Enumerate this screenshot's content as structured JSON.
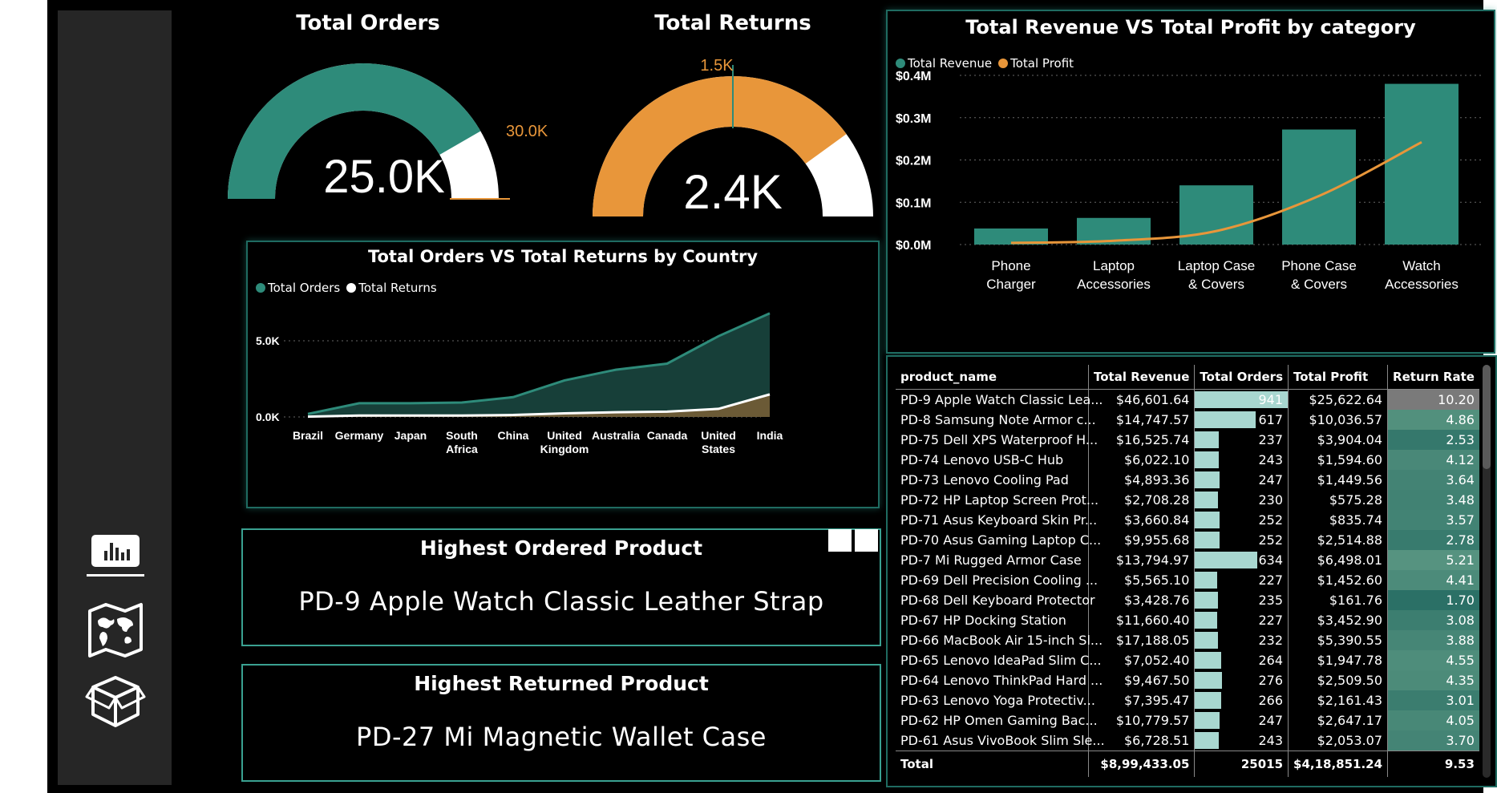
{
  "sidebar": {
    "items": [
      {
        "icon": "bar-chart-icon"
      },
      {
        "icon": "world-map-icon"
      },
      {
        "icon": "box-icon"
      }
    ]
  },
  "gauges": {
    "orders": {
      "title": "Total Orders",
      "value_label": "25.0K",
      "value": 25000,
      "target_label": "30.0K",
      "target": 30000,
      "max": 30000,
      "color": "#2e8b7a"
    },
    "returns": {
      "title": "Total Returns",
      "value_label": "2.4K",
      "value": 2400,
      "target_label": "1.5K",
      "target": 1500,
      "max": 3000,
      "color": "#e8963a"
    }
  },
  "kpis": {
    "highest_ordered": {
      "title": "Highest Ordered Product",
      "value": "PD-9  Apple Watch Classic Leather Strap"
    },
    "highest_returned": {
      "title": "Highest Returned Product",
      "value": "PD-27  Mi Magnetic Wallet Case"
    }
  },
  "colors": {
    "teal": "#2e8b7a",
    "orange": "#e8963a",
    "white": "#ffffff",
    "panel_border": "#1f6b61"
  },
  "chart_data": [
    {
      "type": "area",
      "title": "Total Orders VS Total Returns by Country",
      "categories": [
        "Brazil",
        "Germany",
        "Japan",
        "South Africa",
        "China",
        "United Kingdom",
        "Australia",
        "Canada",
        "United States",
        "India"
      ],
      "series": [
        {
          "name": "Total Orders",
          "values": [
            200,
            900,
            900,
            950,
            1300,
            2400,
            3100,
            3500,
            5300,
            6800
          ]
        },
        {
          "name": "Total Returns",
          "values": [
            20,
            90,
            90,
            95,
            130,
            240,
            310,
            350,
            530,
            1480
          ]
        }
      ],
      "yticks": [
        "0.0K",
        "5.0K"
      ],
      "ylim": [
        0,
        7000
      ],
      "grid": true,
      "legend": "top-left"
    },
    {
      "type": "bar",
      "title": "Total Revenue VS Total Profit by category",
      "categories": [
        "Phone Charger",
        "Laptop Accessories",
        "Laptop Case & Covers",
        "Phone Case & Covers",
        "Watch Accessories"
      ],
      "series": [
        {
          "name": "Total Revenue",
          "type": "bar",
          "values": [
            0.038,
            0.063,
            0.14,
            0.272,
            0.38
          ]
        },
        {
          "name": "Total Profit",
          "type": "line",
          "values": [
            0.004,
            0.009,
            0.032,
            0.115,
            0.242
          ]
        }
      ],
      "yticks": [
        "$0.0M",
        "$0.1M",
        "$0.2M",
        "$0.3M",
        "$0.4M"
      ],
      "ylim": [
        0,
        0.4
      ],
      "grid": true,
      "legend": "top-left"
    }
  ],
  "table": {
    "columns": [
      "product_name",
      "Total Revenue",
      "Total Orders",
      "Total Profit",
      "Return Rate"
    ],
    "orders_max": 941,
    "rows": [
      {
        "name": "PD-9  Apple Watch Classic Lea...",
        "revenue": "$46,601.64",
        "orders": 941,
        "profit": "$25,622.64",
        "rate": "10.20"
      },
      {
        "name": "PD-8  Samsung Note Armor c...",
        "revenue": "$14,747.57",
        "orders": 617,
        "profit": "$10,036.57",
        "rate": "4.86"
      },
      {
        "name": "PD-75  Dell XPS Waterproof H...",
        "revenue": "$16,525.74",
        "orders": 237,
        "profit": "$3,904.04",
        "rate": "2.53"
      },
      {
        "name": "PD-74  Lenovo USB-C Hub",
        "revenue": "$6,022.10",
        "orders": 243,
        "profit": "$1,594.60",
        "rate": "4.12"
      },
      {
        "name": "PD-73  Lenovo Cooling Pad",
        "revenue": "$4,893.36",
        "orders": 247,
        "profit": "$1,449.56",
        "rate": "3.64"
      },
      {
        "name": "PD-72  HP Laptop Screen Prot...",
        "revenue": "$2,708.28",
        "orders": 230,
        "profit": "$575.28",
        "rate": "3.48"
      },
      {
        "name": "PD-71  Asus Keyboard Skin Pr...",
        "revenue": "$3,660.84",
        "orders": 252,
        "profit": "$835.74",
        "rate": "3.57"
      },
      {
        "name": "PD-70  Asus Gaming Laptop C...",
        "revenue": "$9,955.68",
        "orders": 252,
        "profit": "$2,514.88",
        "rate": "2.78"
      },
      {
        "name": "PD-7  Mi Rugged Armor Case",
        "revenue": "$13,794.97",
        "orders": 634,
        "profit": "$6,498.01",
        "rate": "5.21"
      },
      {
        "name": "PD-69  Dell Precision Cooling ...",
        "revenue": "$5,565.10",
        "orders": 227,
        "profit": "$1,452.60",
        "rate": "4.41"
      },
      {
        "name": "PD-68  Dell Keyboard Protector",
        "revenue": "$3,428.76",
        "orders": 235,
        "profit": "$161.76",
        "rate": "1.70"
      },
      {
        "name": "PD-67  HP Docking Station",
        "revenue": "$11,660.40",
        "orders": 227,
        "profit": "$3,452.90",
        "rate": "3.08"
      },
      {
        "name": "PD-66  MacBook Air 15-inch Sl...",
        "revenue": "$17,188.05",
        "orders": 232,
        "profit": "$5,390.55",
        "rate": "3.88"
      },
      {
        "name": "PD-65  Lenovo IdeaPad Slim C...",
        "revenue": "$7,052.40",
        "orders": 264,
        "profit": "$1,947.78",
        "rate": "4.55"
      },
      {
        "name": "PD-64  Lenovo ThinkPad Hard ...",
        "revenue": "$9,467.50",
        "orders": 276,
        "profit": "$2,509.50",
        "rate": "4.35"
      },
      {
        "name": "PD-63  Lenovo Yoga Protectiv...",
        "revenue": "$7,395.47",
        "orders": 266,
        "profit": "$2,161.43",
        "rate": "3.01"
      },
      {
        "name": "PD-62  HP Omen Gaming Bac...",
        "revenue": "$10,779.57",
        "orders": 247,
        "profit": "$2,647.17",
        "rate": "4.05"
      },
      {
        "name": "PD-61  Asus VivoBook Slim Sle...",
        "revenue": "$6,728.51",
        "orders": 243,
        "profit": "$2,053.07",
        "rate": "3.70"
      }
    ],
    "total": {
      "label": "Total",
      "revenue": "$8,99,433.05",
      "orders": "25015",
      "profit": "$4,18,851.24",
      "rate": "9.53"
    }
  }
}
